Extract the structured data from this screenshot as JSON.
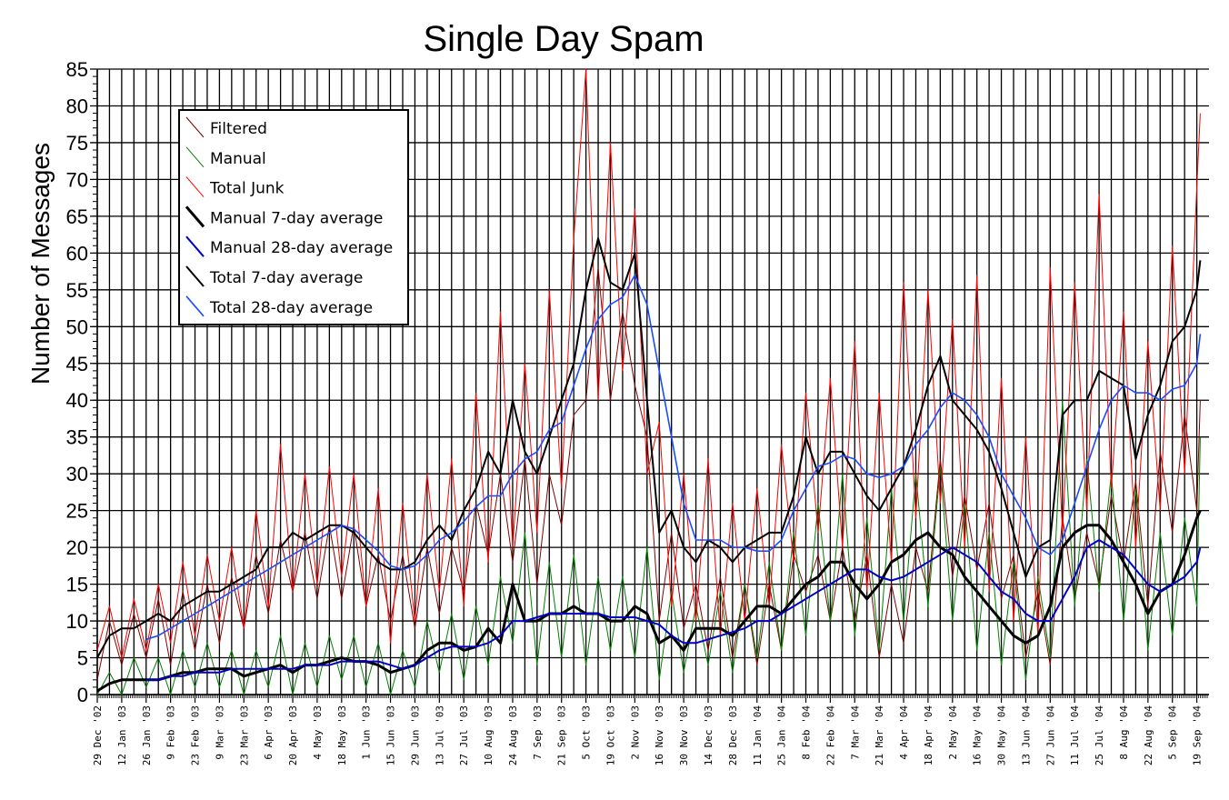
{
  "chart_data": {
    "type": "line",
    "title": "Single Day Spam",
    "xlabel": "",
    "ylabel": "Number of Messages",
    "ylim": [
      0,
      85
    ],
    "y_major_step": 5,
    "grid": "on (weekly vertical, every 5 horizontal)",
    "legend_position": "top-left",
    "x_tick_labels": [
      "29 Dec '02",
      "12 Jan '03",
      "26 Jan '03",
      "9 Feb '03",
      "23 Feb '03",
      "9 Mar '03",
      "23 Mar '03",
      "6 Apr '03",
      "20 Apr '03",
      "4 May '03",
      "18 May '03",
      "1 Jun '03",
      "15 Jun '03",
      "29 Jun '03",
      "13 Jul '03",
      "27 Jul '03",
      "10 Aug '03",
      "24 Aug '03",
      "7 Sep '03",
      "21 Sep '03",
      "5 Oct '03",
      "19 Oct '03",
      "2 Nov '03",
      "16 Nov '03",
      "30 Nov '03",
      "14 Dec '03",
      "28 Dec '03",
      "11 Jan '04",
      "25 Jan '04",
      "8 Feb '04",
      "22 Feb '04",
      "7 Mar '04",
      "21 Mar '04",
      "4 Apr '04",
      "18 Apr '04",
      "2 May '04",
      "16 May '04",
      "30 May '04",
      "13 Jun '04",
      "27 Jun '04",
      "11 Jul '04",
      "25 Jul '04",
      "8 Aug '04",
      "22 Aug '04",
      "5 Sep '04",
      "19 Sep '04"
    ],
    "y_tick_labels": [
      "0",
      "5",
      "10",
      "15",
      "20",
      "25",
      "30",
      "35",
      "40",
      "45",
      "50",
      "55",
      "60",
      "65",
      "70",
      "75",
      "80",
      "85"
    ],
    "dates": [
      "2002-12-29",
      "2003-01-05",
      "2003-01-12",
      "2003-01-19",
      "2003-01-26",
      "2003-02-02",
      "2003-02-09",
      "2003-02-16",
      "2003-02-23",
      "2003-03-02",
      "2003-03-09",
      "2003-03-16",
      "2003-03-23",
      "2003-03-30",
      "2003-04-06",
      "2003-04-13",
      "2003-04-20",
      "2003-04-27",
      "2003-05-04",
      "2003-05-11",
      "2003-05-18",
      "2003-05-25",
      "2003-06-01",
      "2003-06-08",
      "2003-06-15",
      "2003-06-22",
      "2003-06-29",
      "2003-07-06",
      "2003-07-13",
      "2003-07-20",
      "2003-07-27",
      "2003-08-03",
      "2003-08-10",
      "2003-08-17",
      "2003-08-24",
      "2003-08-31",
      "2003-09-07",
      "2003-09-14",
      "2003-09-21",
      "2003-09-28",
      "2003-10-05",
      "2003-10-12",
      "2003-10-19",
      "2003-10-26",
      "2003-11-02",
      "2003-11-09",
      "2003-11-16",
      "2003-11-23",
      "2003-11-30",
      "2003-12-07",
      "2003-12-14",
      "2003-12-21",
      "2003-12-28",
      "2004-01-04",
      "2004-01-11",
      "2004-01-18",
      "2004-01-25",
      "2004-02-01",
      "2004-02-08",
      "2004-02-15",
      "2004-02-22",
      "2004-02-29",
      "2004-03-07",
      "2004-03-14",
      "2004-03-21",
      "2004-03-28",
      "2004-04-04",
      "2004-04-11",
      "2004-04-18",
      "2004-04-25",
      "2004-05-02",
      "2004-05-09",
      "2004-05-16",
      "2004-05-23",
      "2004-05-30",
      "2004-06-06",
      "2004-06-13",
      "2004-06-20",
      "2004-06-27",
      "2004-07-04",
      "2004-07-11",
      "2004-07-18",
      "2004-07-25",
      "2004-08-01",
      "2004-08-08",
      "2004-08-15",
      "2004-08-22",
      "2004-08-29",
      "2004-09-05",
      "2004-09-12",
      "2004-09-19",
      "2004-09-21"
    ],
    "series": [
      {
        "name": "Filtered",
        "color": "#800000",
        "width": 1,
        "values": [
          2,
          10,
          4,
          11,
          5,
          13,
          4,
          14,
          6,
          15,
          7,
          16,
          9,
          19,
          11,
          21,
          14,
          22,
          13,
          23,
          13,
          23,
          12,
          19,
          10,
          19,
          9,
          20,
          11,
          20,
          14,
          26,
          19,
          30,
          18,
          32,
          15,
          30,
          23,
          38,
          40,
          58,
          40,
          52,
          42,
          35,
          10,
          22,
          9,
          15,
          6,
          16,
          5,
          15,
          4,
          15,
          6,
          19,
          14,
          19,
          10,
          20,
          10,
          19,
          5,
          15,
          7,
          20,
          14,
          32,
          16,
          27,
          17,
          26,
          13,
          19,
          5,
          14,
          4,
          24,
          13,
          22,
          15,
          27,
          18,
          29,
          12,
          33,
          22,
          38,
          25,
          40
        ]
      },
      {
        "name": "Manual",
        "color": "#008000",
        "width": 1,
        "values": [
          0,
          3,
          0,
          5,
          1,
          5,
          0,
          6,
          1,
          7,
          1,
          6,
          0,
          6,
          1,
          8,
          0,
          7,
          1,
          8,
          2,
          8,
          1,
          7,
          0,
          6,
          1,
          10,
          3,
          11,
          2,
          12,
          4,
          16,
          7,
          22,
          4,
          18,
          5,
          19,
          4,
          16,
          6,
          16,
          5,
          20,
          2,
          14,
          3,
          12,
          4,
          14,
          3,
          15,
          5,
          18,
          6,
          22,
          8,
          26,
          10,
          30,
          8,
          24,
          6,
          28,
          10,
          30,
          12,
          31,
          10,
          26,
          6,
          22,
          4,
          18,
          2,
          16,
          5,
          40,
          12,
          32,
          14,
          30,
          10,
          28,
          6,
          22,
          8,
          24,
          12,
          35
        ]
      },
      {
        "name": "Total Junk",
        "color": "#ff0000",
        "width": 1,
        "values": [
          6,
          12,
          5,
          13,
          6,
          15,
          7,
          18,
          8,
          19,
          10,
          20,
          9,
          25,
          12,
          34,
          14,
          30,
          15,
          31,
          16,
          30,
          12,
          28,
          7,
          26,
          10,
          30,
          14,
          32,
          12,
          41,
          18,
          52,
          20,
          45,
          22,
          55,
          28,
          62,
          85,
          40,
          75,
          44,
          66,
          30,
          37,
          12,
          30,
          10,
          32,
          8,
          26,
          10,
          28,
          12,
          34,
          18,
          41,
          22,
          43,
          20,
          48,
          14,
          41,
          18,
          56,
          24,
          55,
          26,
          51,
          20,
          57,
          14,
          43,
          10,
          35,
          8,
          58,
          22,
          56,
          25,
          68,
          28,
          52,
          20,
          48,
          25,
          61,
          30,
          69,
          79
        ]
      },
      {
        "name": "Manual 7-day average",
        "color": "#000000",
        "width": 3,
        "values": [
          0.5,
          1.5,
          2,
          2,
          2,
          2,
          2.5,
          3,
          3,
          3.5,
          3.5,
          3.5,
          2.5,
          3,
          3.5,
          4,
          3,
          4,
          4,
          4.5,
          5,
          4.5,
          4.5,
          4,
          3,
          3.5,
          4,
          6,
          7,
          7,
          6,
          6.5,
          9,
          7,
          15,
          10,
          10,
          11,
          11,
          12,
          11,
          11,
          10,
          10,
          12,
          11,
          7,
          8,
          6,
          9,
          9,
          9,
          8,
          10,
          12,
          12,
          11,
          13,
          15,
          16,
          18,
          18,
          15,
          13,
          15,
          18,
          19,
          21,
          22,
          20,
          19,
          16,
          14,
          12,
          10,
          8,
          7,
          8,
          12,
          20,
          22,
          23,
          23,
          21,
          18,
          15,
          11,
          14,
          15,
          19,
          24,
          25
        ]
      },
      {
        "name": "Manual 28-day average",
        "color": "#0000c8",
        "width": 2,
        "values": [
          null,
          null,
          null,
          null,
          2,
          2,
          2.5,
          2.5,
          3,
          3,
          3,
          3.5,
          3.5,
          3.5,
          3.5,
          3.5,
          3.5,
          4,
          4,
          4,
          4.5,
          4.5,
          4.5,
          4.5,
          4,
          3.5,
          4,
          5,
          6,
          6.5,
          6.5,
          6.5,
          7,
          8,
          10,
          10,
          10.5,
          11,
          11,
          11,
          11,
          11,
          10.5,
          10.5,
          10.5,
          10,
          9.5,
          8,
          7,
          7,
          7.5,
          8,
          8.5,
          9,
          10,
          10,
          11,
          12,
          13,
          14,
          15,
          16,
          17,
          17,
          16,
          15.5,
          16,
          17,
          18,
          19,
          20,
          19,
          18,
          16,
          14,
          13,
          11,
          10,
          10,
          13,
          16,
          20,
          21,
          20,
          19,
          17,
          15,
          14,
          15,
          16,
          18,
          20
        ]
      },
      {
        "name": "Total 7-day average",
        "color": "#000000",
        "width": 2,
        "values": [
          5,
          8,
          9,
          9,
          10,
          11,
          10,
          12,
          13,
          14,
          14,
          15,
          16,
          17,
          20,
          20,
          22,
          21,
          22,
          23,
          23,
          22,
          20,
          18,
          17,
          17,
          18,
          21,
          23,
          21,
          25,
          28,
          33,
          30,
          40,
          33,
          30,
          35,
          40,
          45,
          55,
          62,
          56,
          55,
          60,
          40,
          22,
          25,
          20,
          18,
          21,
          20,
          18,
          20,
          21,
          22,
          22,
          27,
          35,
          30,
          33,
          33,
          30,
          27,
          25,
          28,
          31,
          36,
          42,
          46,
          40,
          38,
          36,
          33,
          28,
          22,
          16,
          20,
          21,
          38,
          40,
          40,
          44,
          43,
          42,
          32,
          38,
          42,
          48,
          50,
          55,
          59
        ]
      },
      {
        "name": "Total 28-day average",
        "color": "#1a4cff",
        "width": 1.6,
        "values": [
          null,
          null,
          null,
          null,
          7.5,
          8,
          9,
          10,
          11,
          12,
          13,
          14,
          15,
          16,
          17,
          18,
          19,
          20,
          21,
          22,
          23,
          22.5,
          21,
          19.5,
          17.5,
          17,
          17.5,
          19,
          21,
          22,
          23.5,
          25.5,
          27,
          27,
          30,
          32,
          33,
          36,
          37,
          42,
          47,
          51,
          53,
          54,
          57,
          53,
          44,
          35,
          26,
          21,
          21,
          21,
          20,
          20,
          19.5,
          19.5,
          21,
          25,
          28,
          31,
          31.5,
          32.5,
          32,
          30,
          29.5,
          30,
          31,
          34,
          36,
          39,
          41,
          40,
          38,
          35,
          30,
          27,
          24,
          20,
          19,
          21,
          26,
          31,
          36,
          40,
          42,
          41,
          41,
          40,
          41.5,
          42,
          45,
          49
        ]
      }
    ]
  }
}
